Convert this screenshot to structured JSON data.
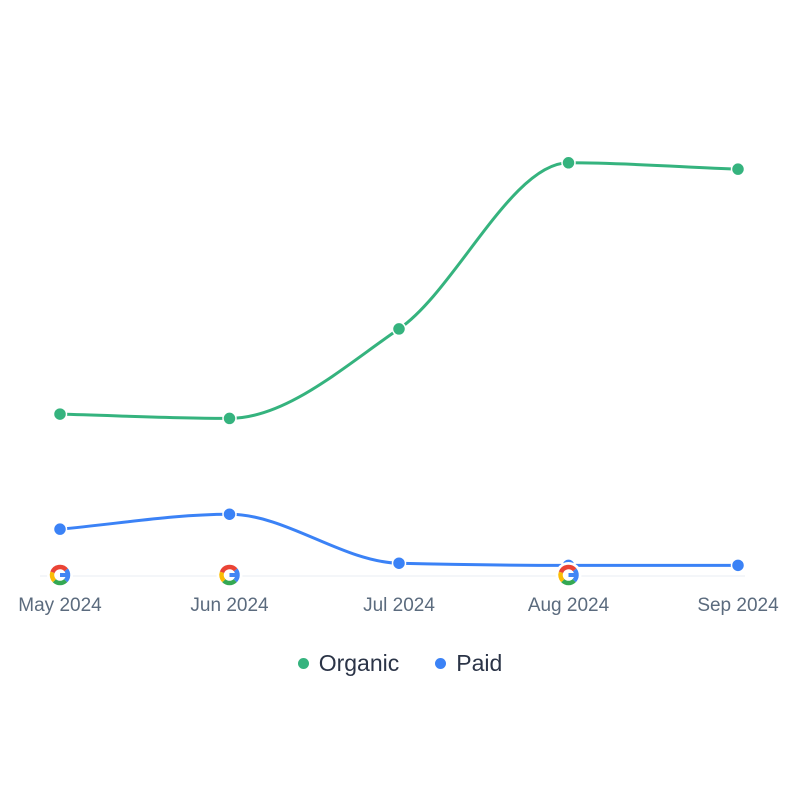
{
  "chart_data": {
    "type": "line",
    "categories": [
      "May 2024",
      "Jun 2024",
      "Jul 2024",
      "Aug 2024",
      "Sep 2024"
    ],
    "ylim": [
      0,
      100
    ],
    "grid": false,
    "legend_position": "bottom-center",
    "series": [
      {
        "name": "Organic",
        "color": "#35b37e",
        "values": [
          38,
          37,
          58,
          97,
          95.5
        ]
      },
      {
        "name": "Paid",
        "color": "#3b82f6",
        "values": [
          11,
          14.5,
          3,
          2.5,
          2.5
        ]
      }
    ],
    "annotations": [
      {
        "category": "May 2024",
        "icon": "google-icon"
      },
      {
        "category": "Jun 2024",
        "icon": "google-icon"
      },
      {
        "category": "Aug 2024",
        "icon": "google-icon"
      }
    ]
  }
}
